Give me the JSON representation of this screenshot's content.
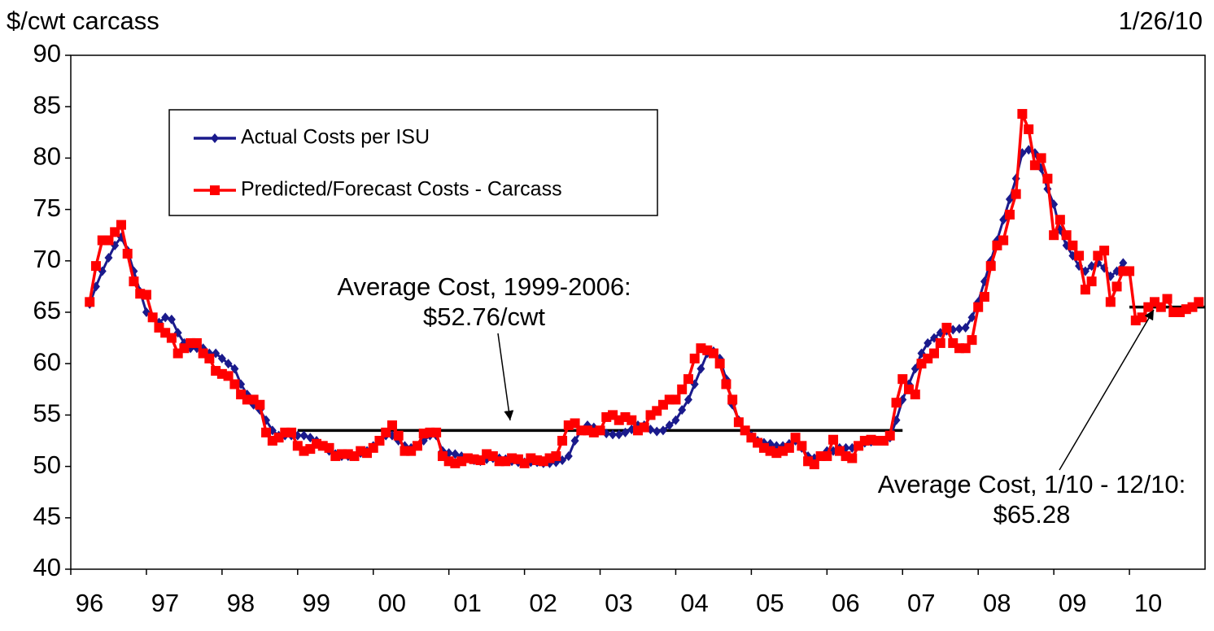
{
  "chart_data": {
    "type": "line",
    "y_unit_label": "$/cwt carcass",
    "date": "1/26/10",
    "xlim": [
      1996,
      2011
    ],
    "xticks": [
      {
        "value": 1996,
        "label": "96"
      },
      {
        "value": 1997,
        "label": "97"
      },
      {
        "value": 1998,
        "label": "98"
      },
      {
        "value": 1999,
        "label": "99"
      },
      {
        "value": 2000,
        "label": "00"
      },
      {
        "value": 2001,
        "label": "01"
      },
      {
        "value": 2002,
        "label": "02"
      },
      {
        "value": 2003,
        "label": "03"
      },
      {
        "value": 2004,
        "label": "04"
      },
      {
        "value": 2005,
        "label": "05"
      },
      {
        "value": 2006,
        "label": "06"
      },
      {
        "value": 2007,
        "label": "07"
      },
      {
        "value": 2008,
        "label": "08"
      },
      {
        "value": 2009,
        "label": "09"
      },
      {
        "value": 2010,
        "label": "10"
      }
    ],
    "ylim": [
      40,
      90
    ],
    "yticks": [
      40,
      45,
      50,
      55,
      60,
      65,
      70,
      75,
      80,
      85,
      90
    ],
    "grid": false,
    "legend": "upper left",
    "series": [
      {
        "name": "Actual Costs per ISU",
        "color": "#1a1a8c",
        "marker": "diamond",
        "x": [
          1996.25,
          1996.333,
          1996.417,
          1996.5,
          1996.583,
          1996.667,
          1996.75,
          1996.833,
          1996.917,
          1997,
          1997.083,
          1997.167,
          1997.25,
          1997.333,
          1997.417,
          1997.5,
          1997.583,
          1997.667,
          1997.75,
          1997.833,
          1997.917,
          1998,
          1998.083,
          1998.167,
          1998.25,
          1998.333,
          1998.417,
          1998.5,
          1998.583,
          1998.667,
          1998.75,
          1998.833,
          1998.917,
          1999,
          1999.083,
          1999.167,
          1999.25,
          1999.333,
          1999.417,
          1999.5,
          1999.583,
          1999.667,
          1999.75,
          1999.833,
          1999.917,
          2000,
          2000.083,
          2000.167,
          2000.25,
          2000.333,
          2000.417,
          2000.5,
          2000.583,
          2000.667,
          2000.75,
          2000.833,
          2000.917,
          2001,
          2001.083,
          2001.167,
          2001.25,
          2001.333,
          2001.417,
          2001.5,
          2001.583,
          2001.667,
          2001.75,
          2001.833,
          2001.917,
          2002,
          2002.083,
          2002.167,
          2002.25,
          2002.333,
          2002.417,
          2002.5,
          2002.583,
          2002.667,
          2002.75,
          2002.833,
          2002.917,
          2003,
          2003.083,
          2003.167,
          2003.25,
          2003.333,
          2003.417,
          2003.5,
          2003.583,
          2003.667,
          2003.75,
          2003.833,
          2003.917,
          2004,
          2004.083,
          2004.167,
          2004.25,
          2004.333,
          2004.417,
          2004.5,
          2004.583,
          2004.667,
          2004.75,
          2004.833,
          2004.917,
          2005,
          2005.083,
          2005.167,
          2005.25,
          2005.333,
          2005.417,
          2005.5,
          2005.583,
          2005.667,
          2005.75,
          2005.833,
          2005.917,
          2006,
          2006.083,
          2006.167,
          2006.25,
          2006.333,
          2006.417,
          2006.5,
          2006.583,
          2006.667,
          2006.75,
          2006.833,
          2006.917,
          2007,
          2007.083,
          2007.167,
          2007.25,
          2007.333,
          2007.417,
          2007.5,
          2007.583,
          2007.667,
          2007.75,
          2007.833,
          2007.917,
          2008,
          2008.083,
          2008.167,
          2008.25,
          2008.333,
          2008.417,
          2008.5,
          2008.583,
          2008.667,
          2008.75,
          2008.833,
          2008.917,
          2009,
          2009.083,
          2009.167,
          2009.25,
          2009.333,
          2009.417,
          2009.5,
          2009.583,
          2009.667,
          2009.75,
          2009.833,
          2009.917
        ],
        "values": [
          65.8,
          67.5,
          69,
          70.3,
          71.5,
          72.3,
          71,
          69,
          67,
          65,
          64.5,
          64,
          64.5,
          64.3,
          63,
          62,
          61.5,
          61.5,
          61.5,
          61,
          61,
          60.5,
          60,
          59.5,
          58,
          57,
          56,
          55.5,
          54.5,
          53.5,
          53,
          53,
          53,
          53,
          53,
          52.8,
          52.5,
          52,
          51.5,
          51.2,
          51,
          51,
          51,
          51.3,
          51.5,
          52,
          52.5,
          53,
          53,
          52.5,
          52,
          51.8,
          52,
          52.5,
          53,
          53,
          51.5,
          51.3,
          51.2,
          51,
          50.8,
          50.6,
          50.5,
          50.7,
          50.8,
          50.8,
          50.7,
          50.5,
          50.4,
          50.4,
          50.4,
          50.4,
          50.3,
          50.3,
          50.4,
          50.6,
          51,
          52.5,
          53.5,
          54,
          53.8,
          53.5,
          53.2,
          53.1,
          53.1,
          53.3,
          53.6,
          54,
          54,
          53.6,
          53.4,
          53.5,
          54,
          54.5,
          55.5,
          56.5,
          58,
          59.5,
          61,
          61.2,
          60.5,
          58.5,
          56,
          54.5,
          53.5,
          53,
          52.5,
          52.3,
          52.2,
          52,
          52,
          52.2,
          52.5,
          51.8,
          51,
          50.8,
          51,
          51.5,
          51.5,
          51.8,
          51.8,
          51.8,
          52,
          52.3,
          52.4,
          52.5,
          52.5,
          52.8,
          54.5,
          56.5,
          58,
          59.5,
          61,
          62,
          62.5,
          63,
          63.2,
          63.3,
          63.4,
          63.5,
          64.5,
          66,
          68,
          70,
          72,
          74,
          76,
          78,
          80.5,
          80.8,
          80.5,
          79,
          77,
          75.5,
          73,
          71.5,
          70.5,
          69.5,
          69,
          69.5,
          69.8,
          69.3,
          68.5,
          69,
          69.8
        ]
      },
      {
        "name": "Predicted/Forecast Costs - Carcass",
        "color": "#ff0000",
        "marker": "square",
        "x": [
          1996.25,
          1996.333,
          1996.417,
          1996.5,
          1996.583,
          1996.667,
          1996.75,
          1996.833,
          1996.917,
          1997,
          1997.083,
          1997.167,
          1997.25,
          1997.333,
          1997.417,
          1997.5,
          1997.583,
          1997.667,
          1997.75,
          1997.833,
          1997.917,
          1998,
          1998.083,
          1998.167,
          1998.25,
          1998.333,
          1998.417,
          1998.5,
          1998.583,
          1998.667,
          1998.75,
          1998.833,
          1998.917,
          1999,
          1999.083,
          1999.167,
          1999.25,
          1999.333,
          1999.417,
          1999.5,
          1999.583,
          1999.667,
          1999.75,
          1999.833,
          1999.917,
          2000,
          2000.083,
          2000.167,
          2000.25,
          2000.333,
          2000.417,
          2000.5,
          2000.583,
          2000.667,
          2000.75,
          2000.833,
          2000.917,
          2001,
          2001.083,
          2001.167,
          2001.25,
          2001.333,
          2001.417,
          2001.5,
          2001.583,
          2001.667,
          2001.75,
          2001.833,
          2001.917,
          2002,
          2002.083,
          2002.167,
          2002.25,
          2002.333,
          2002.417,
          2002.5,
          2002.583,
          2002.667,
          2002.75,
          2002.833,
          2002.917,
          2003,
          2003.083,
          2003.167,
          2003.25,
          2003.333,
          2003.417,
          2003.5,
          2003.583,
          2003.667,
          2003.75,
          2003.833,
          2003.917,
          2004,
          2004.083,
          2004.167,
          2004.25,
          2004.333,
          2004.417,
          2004.5,
          2004.583,
          2004.667,
          2004.75,
          2004.833,
          2004.917,
          2005,
          2005.083,
          2005.167,
          2005.25,
          2005.333,
          2005.417,
          2005.5,
          2005.583,
          2005.667,
          2005.75,
          2005.833,
          2005.917,
          2006,
          2006.083,
          2006.167,
          2006.25,
          2006.333,
          2006.417,
          2006.5,
          2006.583,
          2006.667,
          2006.75,
          2006.833,
          2006.917,
          2007,
          2007.083,
          2007.167,
          2007.25,
          2007.333,
          2007.417,
          2007.5,
          2007.583,
          2007.667,
          2007.75,
          2007.833,
          2007.917,
          2008,
          2008.083,
          2008.167,
          2008.25,
          2008.333,
          2008.417,
          2008.5,
          2008.583,
          2008.667,
          2008.75,
          2008.833,
          2008.917,
          2009,
          2009.083,
          2009.167,
          2009.25,
          2009.333,
          2009.417,
          2009.5,
          2009.583,
          2009.667,
          2009.75,
          2009.833,
          2009.917,
          2010,
          2010.083,
          2010.167,
          2010.25,
          2010.333,
          2010.417,
          2010.5,
          2010.583,
          2010.667,
          2010.75,
          2010.833,
          2010.917
        ],
        "values": [
          66,
          69.5,
          72,
          72,
          72.8,
          73.5,
          70.7,
          68,
          66.8,
          66.7,
          64.5,
          63.5,
          63,
          62.5,
          61,
          61.5,
          62,
          62,
          61,
          60.5,
          59.3,
          59,
          58.8,
          58,
          57,
          56.5,
          56.5,
          56,
          53.3,
          52.5,
          52.8,
          53.3,
          53.3,
          52,
          51.5,
          51.7,
          52.2,
          52,
          51.8,
          51,
          51.2,
          51.2,
          51,
          51.5,
          51.3,
          51.8,
          52.5,
          53.3,
          54,
          53,
          51.5,
          51.5,
          52,
          53.2,
          53.3,
          53.3,
          51,
          50.5,
          50.3,
          50.5,
          50.8,
          50.7,
          50.6,
          51.2,
          51,
          50.5,
          50.5,
          50.8,
          50.7,
          50.3,
          50.8,
          50.6,
          50.5,
          50.8,
          51,
          52.5,
          54,
          54.2,
          53.5,
          53.5,
          53.3,
          53.5,
          54.8,
          55,
          54.5,
          54.8,
          54.5,
          53.5,
          53.8,
          55,
          55.4,
          56,
          56.5,
          56.5,
          57.5,
          58.5,
          60.5,
          61.5,
          61.3,
          61,
          60,
          58,
          56.5,
          54.3,
          53.5,
          52.8,
          52.3,
          51.8,
          51.5,
          51.3,
          51.5,
          51.8,
          52.8,
          52,
          50.5,
          50.2,
          51,
          51,
          52.6,
          51.5,
          51,
          50.8,
          52,
          52.5,
          52.6,
          52.5,
          52.5,
          53,
          56.2,
          58.5,
          57.5,
          57,
          60,
          60.5,
          61,
          62,
          63.5,
          62,
          61.5,
          61.5,
          62.3,
          65.5,
          66.5,
          69.5,
          71.5,
          72,
          74.5,
          76.5,
          84.3,
          82.8,
          79.3,
          80,
          78,
          72.5,
          74,
          72.5,
          71.5,
          70.5,
          67.2,
          68,
          70.5,
          71,
          66,
          67.5,
          69,
          69,
          64.2,
          64.5,
          65.5,
          66,
          65.5,
          66.3,
          65,
          65,
          65.3,
          65.5,
          66
        ]
      }
    ],
    "reference_lines": [
      {
        "x": [
          1999,
          2007
        ],
        "y": 53.5,
        "color": "#000000"
      },
      {
        "x": [
          2010,
          2011
        ],
        "y": 65.5,
        "color": "#000000"
      }
    ],
    "annotations": [
      {
        "lines": [
          "Average Cost, 1999-2006:",
          "$52.76/cwt"
        ]
      },
      {
        "lines": [
          "Average Cost, 1/10 - 12/10:",
          "$65.28"
        ]
      }
    ]
  }
}
